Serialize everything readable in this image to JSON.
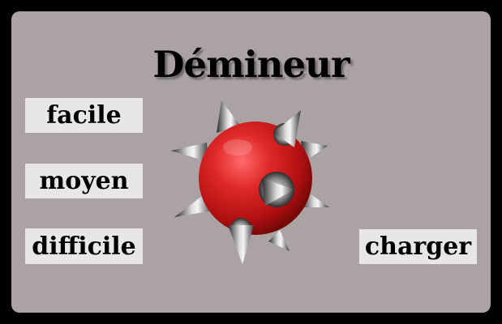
{
  "title": "Démineur",
  "menu": {
    "easy_label": "facile",
    "medium_label": "moyen",
    "hard_label": "difficile",
    "load_label": "charger"
  },
  "colors": {
    "background": "#000000",
    "panel": "#aba3a3",
    "button": "#e9e6e6",
    "mine_body": "#d21f1f"
  },
  "icons": {
    "logo": "mine-icon"
  }
}
